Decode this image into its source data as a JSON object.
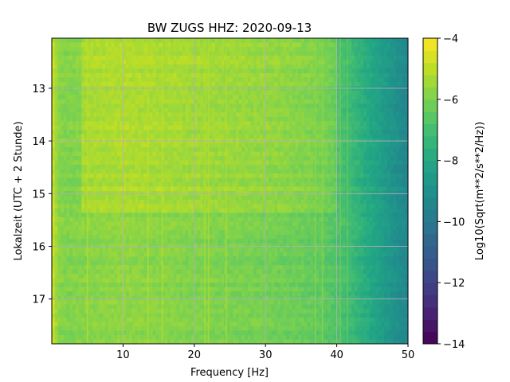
{
  "chart_data": {
    "type": "heatmap",
    "title": "BW ZUGS  HHZ: 2020-09-13",
    "xlabel": "Frequency [Hz]",
    "ylabel": "Lokalzeit (UTC + 2 Stunde)",
    "colorbar_label": "Log10(Sqrt(m**2/s**2/Hz))",
    "xlim": [
      0,
      50
    ],
    "ylim": [
      17.85,
      12.05
    ],
    "x_ticks": [
      10,
      20,
      30,
      40,
      50
    ],
    "x_tick_labels": [
      "10",
      "20",
      "30",
      "40",
      "50"
    ],
    "y_ticks": [
      13,
      14,
      15,
      16,
      17
    ],
    "y_tick_labels": [
      "13",
      "14",
      "15",
      "16",
      "17"
    ],
    "colorbar_range": [
      -14,
      -4
    ],
    "colorbar_ticks": [
      -4,
      -6,
      -8,
      -10,
      -12,
      -14
    ],
    "colorbar_tick_labels": [
      "−4",
      "−6",
      "−8",
      "−10",
      "−12",
      "−14"
    ],
    "colormap": "viridis",
    "grid": true,
    "y_inverted": true,
    "spectral_profile": {
      "frequency_hz": [
        0,
        0.5,
        1,
        2,
        5,
        10,
        15,
        20,
        25,
        30,
        35,
        38,
        40,
        42,
        44,
        46,
        48,
        50
      ],
      "level_log10": [
        -4.6,
        -5.3,
        -5.8,
        -5.9,
        -5.8,
        -5.7,
        -5.8,
        -5.9,
        -6.0,
        -6.1,
        -6.3,
        -6.5,
        -6.8,
        -7.2,
        -7.8,
        -8.3,
        -8.9,
        -9.4
      ]
    },
    "elevated_band": {
      "time_range_h": [
        12.05,
        15.4
      ],
      "frequency_range_hz": [
        4,
        40
      ],
      "delta_log10": 0.5
    },
    "spectral_lines_hz": [
      5,
      10,
      13.5,
      15.5,
      21.5,
      22,
      24.5,
      37,
      38,
      40.5,
      41.5
    ]
  }
}
